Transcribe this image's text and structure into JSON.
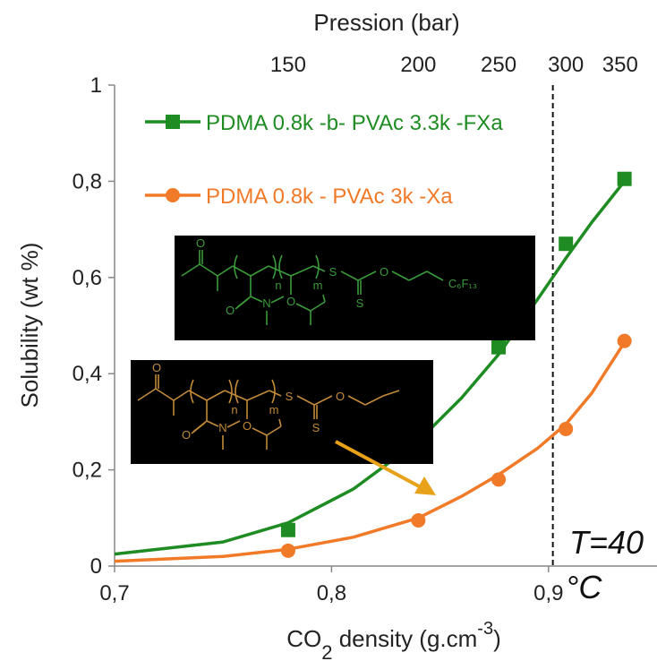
{
  "chart_data": {
    "type": "scatter",
    "title": "",
    "xlabel": "CO",
    "xlabel_sub": "2",
    "xlabel_rest": " density (g.cm",
    "xlabel_sup": "-3",
    "xlabel_end": ")",
    "ylabel": "Solubility (wt %)",
    "top_xlabel": "Pression (bar)",
    "xlim": [
      0.7,
      0.95
    ],
    "ylim": [
      0,
      1
    ],
    "x_ticks": [
      {
        "value": 0.7,
        "label": "0,7"
      },
      {
        "value": 0.8,
        "label": "0,8"
      },
      {
        "value": 0.9,
        "label": "0,9"
      }
    ],
    "y_ticks": [
      {
        "value": 0,
        "label": "0"
      },
      {
        "value": 0.2,
        "label": "0,2"
      },
      {
        "value": 0.4,
        "label": "0,4"
      },
      {
        "value": 0.6,
        "label": "0,6"
      },
      {
        "value": 0.8,
        "label": "0,8"
      },
      {
        "value": 1,
        "label": "1"
      }
    ],
    "top_ticks": [
      {
        "x": 0.78,
        "label": "150"
      },
      {
        "x": 0.84,
        "label": "200"
      },
      {
        "x": 0.877,
        "label": "250"
      },
      {
        "x": 0.908,
        "label": "300"
      },
      {
        "x": 0.933,
        "label": "350"
      }
    ],
    "vline_x": 0.902,
    "annotation": "T=40",
    "annotation2": "°C",
    "series": [
      {
        "name": "PDMA 0.8k -b- PVAc 3.3k -FXa",
        "color": "#1e8c22",
        "marker": "square",
        "points": [
          {
            "x": 0.78,
            "y": 0.075
          },
          {
            "x": 0.877,
            "y": 0.455
          },
          {
            "x": 0.908,
            "y": 0.67
          },
          {
            "x": 0.935,
            "y": 0.805
          }
        ],
        "fit": [
          {
            "x": 0.7,
            "y": 0.025
          },
          {
            "x": 0.75,
            "y": 0.05
          },
          {
            "x": 0.78,
            "y": 0.09
          },
          {
            "x": 0.81,
            "y": 0.16
          },
          {
            "x": 0.84,
            "y": 0.26
          },
          {
            "x": 0.86,
            "y": 0.35
          },
          {
            "x": 0.877,
            "y": 0.44
          },
          {
            "x": 0.895,
            "y": 0.555
          },
          {
            "x": 0.908,
            "y": 0.64
          },
          {
            "x": 0.92,
            "y": 0.715
          },
          {
            "x": 0.935,
            "y": 0.8
          }
        ]
      },
      {
        "name": "PDMA 0.8k - PVAc 3k -Xa",
        "color": "#f07a28",
        "marker": "circle",
        "points": [
          {
            "x": 0.78,
            "y": 0.032
          },
          {
            "x": 0.84,
            "y": 0.095
          },
          {
            "x": 0.877,
            "y": 0.18
          },
          {
            "x": 0.908,
            "y": 0.285
          },
          {
            "x": 0.935,
            "y": 0.468
          }
        ],
        "fit": [
          {
            "x": 0.7,
            "y": 0.01
          },
          {
            "x": 0.75,
            "y": 0.02
          },
          {
            "x": 0.78,
            "y": 0.035
          },
          {
            "x": 0.81,
            "y": 0.06
          },
          {
            "x": 0.84,
            "y": 0.1
          },
          {
            "x": 0.86,
            "y": 0.145
          },
          {
            "x": 0.877,
            "y": 0.19
          },
          {
            "x": 0.895,
            "y": 0.245
          },
          {
            "x": 0.908,
            "y": 0.295
          },
          {
            "x": 0.92,
            "y": 0.36
          },
          {
            "x": 0.935,
            "y": 0.465
          }
        ]
      }
    ],
    "structures": [
      {
        "n": "n",
        "m": "m",
        "carbonyl": "O",
        "n_atom": "N",
        "o_ester": "O",
        "o_ketone": "O",
        "s1": "S",
        "s2": "S",
        "o_ether": "O",
        "tail": "C₆F₁₃",
        "color": "#3a9a3a"
      },
      {
        "n": "n",
        "m": "m",
        "carbonyl": "O",
        "n_atom": "N",
        "o_ester": "O",
        "o_ketone": "O",
        "s1": "S",
        "s2": "S",
        "o_ether": "O",
        "tail": "",
        "color": "#c28a3a"
      }
    ],
    "arrow_color": "#e8a21a"
  }
}
